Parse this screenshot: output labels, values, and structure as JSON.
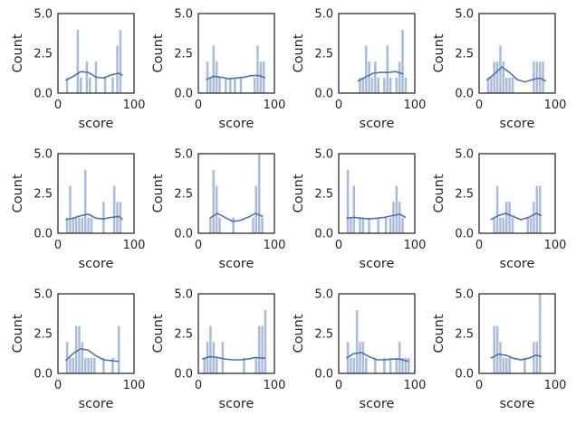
{
  "chart_data": [
    {
      "type": "histogram",
      "xlabel": "score",
      "ylabel": "Count",
      "ylim": [
        0,
        5
      ],
      "yticks": [
        "0.0",
        "2.5",
        "5.0"
      ],
      "xticks": [
        "0",
        "100"
      ],
      "x_range": [
        0,
        100
      ],
      "bins": [
        [
          10,
          14,
          1
        ],
        [
          24,
          28,
          4
        ],
        [
          28,
          32,
          1
        ],
        [
          36,
          40,
          2
        ],
        [
          40,
          44,
          1
        ],
        [
          48,
          52,
          2
        ],
        [
          60,
          64,
          1
        ],
        [
          70,
          74,
          1
        ],
        [
          76,
          80,
          3
        ],
        [
          80,
          84,
          4
        ]
      ],
      "kde": [
        [
          10,
          0.8
        ],
        [
          20,
          1.05
        ],
        [
          30,
          1.35
        ],
        [
          40,
          1.3
        ],
        [
          50,
          1.0
        ],
        [
          60,
          0.95
        ],
        [
          70,
          1.15
        ],
        [
          80,
          1.25
        ],
        [
          85,
          1.1
        ]
      ]
    },
    {
      "type": "histogram",
      "xlabel": "score",
      "ylabel": "Count",
      "ylim": [
        0,
        5
      ],
      "yticks": [
        "0.0",
        "2.5",
        "5.0"
      ],
      "xticks": [
        "0",
        "100"
      ],
      "x_range": [
        0,
        100
      ],
      "bins": [
        [
          10,
          14,
          2
        ],
        [
          14,
          18,
          1
        ],
        [
          18,
          22,
          3
        ],
        [
          22,
          26,
          2
        ],
        [
          26,
          30,
          1
        ],
        [
          34,
          38,
          1
        ],
        [
          40,
          44,
          1
        ],
        [
          46,
          50,
          1
        ],
        [
          54,
          58,
          1
        ],
        [
          72,
          76,
          1
        ],
        [
          76,
          80,
          3
        ],
        [
          80,
          84,
          2
        ],
        [
          84,
          88,
          2
        ]
      ],
      "kde": [
        [
          10,
          0.85
        ],
        [
          20,
          1.05
        ],
        [
          30,
          1.0
        ],
        [
          40,
          0.9
        ],
        [
          50,
          0.95
        ],
        [
          60,
          1.0
        ],
        [
          70,
          1.1
        ],
        [
          80,
          1.1
        ],
        [
          88,
          0.95
        ]
      ]
    },
    {
      "type": "histogram",
      "xlabel": "score",
      "ylabel": "Count",
      "ylim": [
        0,
        5
      ],
      "yticks": [
        "0.0",
        "2.5",
        "5.0"
      ],
      "xticks": [
        "0",
        "100"
      ],
      "x_range": [
        0,
        100
      ],
      "bins": [
        [
          26,
          30,
          1
        ],
        [
          30,
          34,
          1
        ],
        [
          34,
          38,
          3
        ],
        [
          38,
          42,
          2
        ],
        [
          42,
          46,
          1
        ],
        [
          46,
          50,
          2
        ],
        [
          50,
          54,
          1
        ],
        [
          58,
          62,
          1
        ],
        [
          62,
          66,
          3
        ],
        [
          66,
          70,
          1
        ],
        [
          74,
          78,
          1
        ],
        [
          78,
          82,
          2
        ],
        [
          82,
          86,
          4
        ],
        [
          86,
          90,
          1
        ]
      ],
      "kde": [
        [
          25,
          0.75
        ],
        [
          35,
          1.0
        ],
        [
          45,
          1.25
        ],
        [
          55,
          1.3
        ],
        [
          65,
          1.3
        ],
        [
          75,
          1.35
        ],
        [
          85,
          1.2
        ]
      ]
    },
    {
      "type": "histogram",
      "xlabel": "score",
      "ylabel": "Count",
      "ylim": [
        0,
        5
      ],
      "yticks": [
        "0.0",
        "2.5",
        "5.0"
      ],
      "xticks": [
        "0",
        "100"
      ],
      "x_range": [
        0,
        100
      ],
      "bins": [
        [
          10,
          14,
          1
        ],
        [
          14,
          18,
          1
        ],
        [
          18,
          22,
          2
        ],
        [
          22,
          26,
          2
        ],
        [
          26,
          30,
          3
        ],
        [
          30,
          34,
          2
        ],
        [
          34,
          38,
          1
        ],
        [
          38,
          42,
          1
        ],
        [
          42,
          46,
          1
        ],
        [
          70,
          74,
          2
        ],
        [
          74,
          78,
          2
        ],
        [
          78,
          82,
          2
        ],
        [
          82,
          86,
          2
        ]
      ],
      "kde": [
        [
          10,
          0.8
        ],
        [
          20,
          1.2
        ],
        [
          30,
          1.65
        ],
        [
          40,
          1.3
        ],
        [
          50,
          0.85
        ],
        [
          60,
          0.7
        ],
        [
          70,
          0.85
        ],
        [
          80,
          0.95
        ],
        [
          88,
          0.75
        ]
      ]
    },
    {
      "type": "histogram",
      "xlabel": "score",
      "ylabel": "Count",
      "ylim": [
        0,
        5
      ],
      "yticks": [
        "0.0",
        "2.5",
        "5.0"
      ],
      "xticks": [
        "0",
        "100"
      ],
      "x_range": [
        0,
        100
      ],
      "bins": [
        [
          10,
          14,
          1
        ],
        [
          14,
          18,
          3
        ],
        [
          18,
          22,
          1
        ],
        [
          22,
          26,
          1
        ],
        [
          26,
          30,
          1
        ],
        [
          30,
          34,
          1
        ],
        [
          34,
          38,
          4
        ],
        [
          38,
          42,
          1
        ],
        [
          42,
          46,
          1
        ],
        [
          58,
          62,
          2
        ],
        [
          72,
          76,
          3
        ],
        [
          76,
          80,
          2
        ],
        [
          80,
          84,
          2
        ]
      ],
      "kde": [
        [
          10,
          0.85
        ],
        [
          20,
          0.95
        ],
        [
          30,
          1.1
        ],
        [
          40,
          1.2
        ],
        [
          50,
          0.95
        ],
        [
          60,
          0.9
        ],
        [
          70,
          1.0
        ],
        [
          80,
          1.05
        ],
        [
          85,
          0.85
        ]
      ]
    },
    {
      "type": "histogram",
      "xlabel": "score",
      "ylabel": "Count",
      "ylim": [
        0,
        5
      ],
      "yticks": [
        "0.0",
        "2.5",
        "5.0"
      ],
      "xticks": [
        "0",
        "100"
      ],
      "x_range": [
        0,
        100
      ],
      "bins": [
        [
          14,
          18,
          1
        ],
        [
          18,
          22,
          4
        ],
        [
          22,
          26,
          3
        ],
        [
          26,
          30,
          1
        ],
        [
          44,
          48,
          1
        ],
        [
          70,
          74,
          1
        ],
        [
          74,
          78,
          3
        ],
        [
          78,
          82,
          5
        ],
        [
          82,
          86,
          1
        ]
      ],
      "kde": [
        [
          15,
          0.95
        ],
        [
          25,
          1.25
        ],
        [
          35,
          1.0
        ],
        [
          45,
          0.75
        ],
        [
          55,
          0.8
        ],
        [
          65,
          1.0
        ],
        [
          75,
          1.25
        ],
        [
          85,
          1.05
        ]
      ]
    },
    {
      "type": "histogram",
      "xlabel": "score",
      "ylabel": "Count",
      "ylim": [
        0,
        5
      ],
      "yticks": [
        "0.0",
        "2.5",
        "5.0"
      ],
      "xticks": [
        "0",
        "100"
      ],
      "x_range": [
        0,
        100
      ],
      "bins": [
        [
          10,
          14,
          4
        ],
        [
          14,
          18,
          1
        ],
        [
          18,
          22,
          3
        ],
        [
          26,
          30,
          1
        ],
        [
          30,
          34,
          1
        ],
        [
          38,
          42,
          1
        ],
        [
          50,
          54,
          1
        ],
        [
          60,
          64,
          1
        ],
        [
          66,
          70,
          1
        ],
        [
          70,
          74,
          2
        ],
        [
          74,
          78,
          3
        ],
        [
          78,
          82,
          2
        ],
        [
          82,
          86,
          1
        ]
      ],
      "kde": [
        [
          10,
          0.95
        ],
        [
          20,
          1.0
        ],
        [
          30,
          0.95
        ],
        [
          40,
          0.9
        ],
        [
          50,
          0.95
        ],
        [
          60,
          1.0
        ],
        [
          70,
          1.1
        ],
        [
          80,
          1.2
        ],
        [
          88,
          1.0
        ]
      ]
    },
    {
      "type": "histogram",
      "xlabel": "score",
      "ylabel": "Count",
      "ylim": [
        0,
        5
      ],
      "yticks": [
        "0.0",
        "2.5",
        "5.0"
      ],
      "xticks": [
        "0",
        "100"
      ],
      "x_range": [
        0,
        100
      ],
      "bins": [
        [
          18,
          22,
          1
        ],
        [
          22,
          26,
          3
        ],
        [
          26,
          30,
          1
        ],
        [
          30,
          34,
          1
        ],
        [
          34,
          38,
          2
        ],
        [
          38,
          42,
          2
        ],
        [
          42,
          46,
          1
        ],
        [
          62,
          66,
          1
        ],
        [
          66,
          70,
          1
        ],
        [
          70,
          74,
          2
        ],
        [
          74,
          78,
          3
        ],
        [
          78,
          82,
          3
        ]
      ],
      "kde": [
        [
          15,
          0.85
        ],
        [
          25,
          1.1
        ],
        [
          35,
          1.25
        ],
        [
          45,
          1.05
        ],
        [
          55,
          0.85
        ],
        [
          65,
          1.0
        ],
        [
          75,
          1.25
        ],
        [
          82,
          1.1
        ]
      ]
    },
    {
      "type": "histogram",
      "xlabel": "score",
      "ylabel": "Count",
      "ylim": [
        0,
        5
      ],
      "yticks": [
        "0.0",
        "2.5",
        "5.0"
      ],
      "xticks": [
        "0",
        "100"
      ],
      "x_range": [
        0,
        100
      ],
      "bins": [
        [
          10,
          14,
          2
        ],
        [
          14,
          18,
          1
        ],
        [
          18,
          22,
          1
        ],
        [
          22,
          26,
          3
        ],
        [
          26,
          30,
          3
        ],
        [
          30,
          34,
          2
        ],
        [
          34,
          38,
          1
        ],
        [
          38,
          42,
          1
        ],
        [
          42,
          46,
          1
        ],
        [
          46,
          50,
          1
        ],
        [
          58,
          62,
          1
        ],
        [
          70,
          74,
          1
        ],
        [
          78,
          82,
          3
        ]
      ],
      "kde": [
        [
          10,
          0.8
        ],
        [
          20,
          1.25
        ],
        [
          30,
          1.55
        ],
        [
          40,
          1.45
        ],
        [
          50,
          1.1
        ],
        [
          60,
          0.85
        ],
        [
          70,
          0.8
        ],
        [
          80,
          0.75
        ]
      ]
    },
    {
      "type": "histogram",
      "xlabel": "score",
      "ylabel": "Count",
      "ylim": [
        0,
        5
      ],
      "yticks": [
        "0.0",
        "2.5",
        "5.0"
      ],
      "xticks": [
        "0",
        "100"
      ],
      "x_range": [
        0,
        100
      ],
      "bins": [
        [
          6,
          10,
          1
        ],
        [
          10,
          14,
          2
        ],
        [
          14,
          18,
          3
        ],
        [
          18,
          22,
          2
        ],
        [
          22,
          26,
          1
        ],
        [
          30,
          34,
          2
        ],
        [
          58,
          62,
          1
        ],
        [
          74,
          78,
          1
        ],
        [
          78,
          82,
          3
        ],
        [
          82,
          86,
          3
        ],
        [
          86,
          90,
          4
        ]
      ],
      "kde": [
        [
          5,
          0.9
        ],
        [
          15,
          1.05
        ],
        [
          25,
          1.0
        ],
        [
          35,
          0.9
        ],
        [
          45,
          0.85
        ],
        [
          55,
          0.85
        ],
        [
          65,
          0.9
        ],
        [
          75,
          1.0
        ],
        [
          88,
          0.95
        ]
      ]
    },
    {
      "type": "histogram",
      "xlabel": "score",
      "ylabel": "Count",
      "ylim": [
        0,
        5
      ],
      "yticks": [
        "0.0",
        "2.5",
        "5.0"
      ],
      "xticks": [
        "0",
        "100"
      ],
      "x_range": [
        0,
        100
      ],
      "bins": [
        [
          10,
          14,
          2
        ],
        [
          14,
          18,
          1
        ],
        [
          18,
          22,
          1
        ],
        [
          22,
          26,
          4
        ],
        [
          26,
          30,
          2
        ],
        [
          30,
          34,
          2
        ],
        [
          34,
          38,
          1
        ],
        [
          46,
          50,
          1
        ],
        [
          58,
          62,
          1
        ],
        [
          66,
          70,
          1
        ],
        [
          74,
          78,
          1
        ],
        [
          78,
          82,
          2
        ],
        [
          82,
          86,
          1
        ],
        [
          86,
          90,
          1
        ],
        [
          90,
          94,
          1
        ]
      ],
      "kde": [
        [
          10,
          0.95
        ],
        [
          20,
          1.25
        ],
        [
          30,
          1.3
        ],
        [
          40,
          1.05
        ],
        [
          50,
          0.85
        ],
        [
          60,
          0.85
        ],
        [
          70,
          0.9
        ],
        [
          80,
          0.9
        ],
        [
          92,
          0.75
        ]
      ]
    },
    {
      "type": "histogram",
      "xlabel": "score",
      "ylabel": "Count",
      "ylim": [
        0,
        5
      ],
      "yticks": [
        "0.0",
        "2.5",
        "5.0"
      ],
      "xticks": [
        "0",
        "100"
      ],
      "x_range": [
        0,
        100
      ],
      "bins": [
        [
          18,
          22,
          3
        ],
        [
          22,
          26,
          3
        ],
        [
          26,
          30,
          2
        ],
        [
          30,
          34,
          1
        ],
        [
          34,
          38,
          1
        ],
        [
          38,
          42,
          1
        ],
        [
          58,
          62,
          1
        ],
        [
          70,
          74,
          2
        ],
        [
          74,
          78,
          2
        ],
        [
          78,
          82,
          5
        ]
      ],
      "kde": [
        [
          15,
          0.95
        ],
        [
          25,
          1.2
        ],
        [
          35,
          1.15
        ],
        [
          45,
          0.95
        ],
        [
          55,
          0.85
        ],
        [
          65,
          0.95
        ],
        [
          75,
          1.15
        ],
        [
          82,
          1.05
        ]
      ]
    }
  ]
}
